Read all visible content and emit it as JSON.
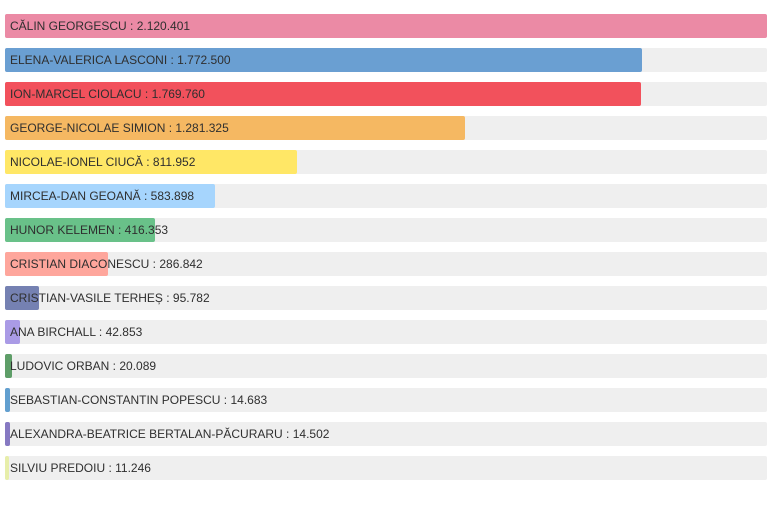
{
  "chart_data": {
    "type": "bar",
    "orientation": "horizontal",
    "title": "",
    "xlabel": "",
    "ylabel": "",
    "xlim": [
      0,
      2120401
    ],
    "grid": false,
    "legend": "none",
    "separator": " : ",
    "categories": [
      "CĂLIN GEORGESCU",
      "ELENA-VALERICA LASCONI",
      "ION-MARCEL CIOLACU",
      "GEORGE-NICOLAE SIMION",
      "NICOLAE-IONEL CIUCĂ",
      "MIRCEA-DAN GEOANĂ",
      "HUNOR KELEMEN",
      "CRISTIAN DIACONESCU",
      "CRISTIAN-VASILE TERHEȘ",
      "ANA BIRCHALL",
      "LUDOVIC ORBAN",
      "SEBASTIAN-CONSTANTIN POPESCU",
      "ALEXANDRA-BEATRICE BERTALAN-PĂCURARU",
      "SILVIU PREDOIU"
    ],
    "values": [
      2120401,
      1772500,
      1769760,
      1281325,
      811952,
      583898,
      416353,
      286842,
      95782,
      42853,
      20089,
      14683,
      14502,
      11246
    ],
    "value_labels": [
      "2.120.401",
      "1.772.500",
      "1.769.760",
      "1.281.325",
      "811.952",
      "583.898",
      "416.353",
      "286.842",
      "95.782",
      "42.853",
      "20.089",
      "14.683",
      "14.502",
      "11.246"
    ],
    "colors": [
      "#eb8aa5",
      "#6a9fd2",
      "#f2515c",
      "#f5b862",
      "#ffe766",
      "#a6d5fd",
      "#69c189",
      "#fea69c",
      "#7581b2",
      "#aa9be6",
      "#5e9e68",
      "#629fcf",
      "#8679c2",
      "#e7eeaa"
    ]
  }
}
